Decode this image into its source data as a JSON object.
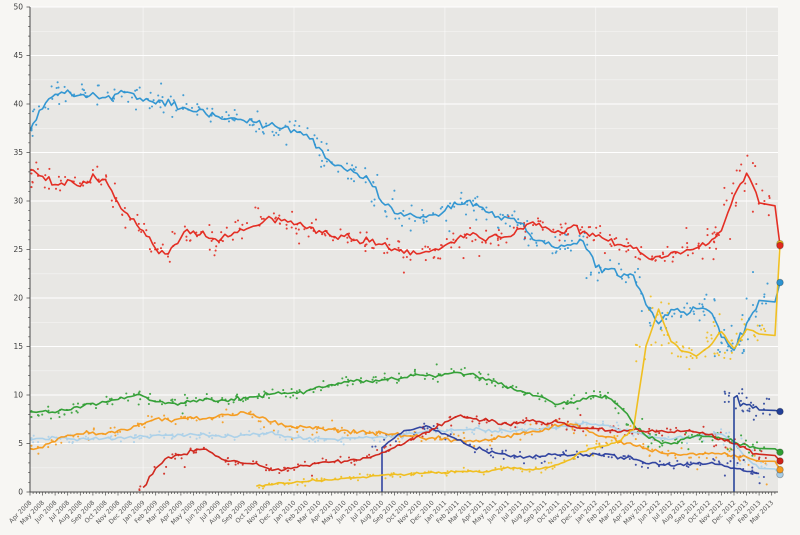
{
  "chart_data": {
    "type": "scatter",
    "title": "",
    "xlabel": "",
    "ylabel": "",
    "ylim": [
      0,
      50
    ],
    "ytick_labels": [
      0,
      5,
      10,
      15,
      20,
      25,
      30,
      35,
      40,
      45,
      50
    ],
    "grid": "on",
    "panel_color": "#e8e7e4",
    "grid_color": "#ffffff",
    "axis_color": "#4a4a4a",
    "tick_label_color": "#555555",
    "x_months": [
      "Apr 2008",
      "May 2008",
      "Jun 2008",
      "Jul 2008",
      "Aug 2008",
      "Sep 2008",
      "Oct 2008",
      "Nov 2008",
      "Dec 2008",
      "Jan 2009",
      "Feb 2009",
      "Mar 2009",
      "Apr 2009",
      "May 2009",
      "Jun 2009",
      "Jul 2009",
      "Aug 2009",
      "Sep 2009",
      "Oct 2009",
      "Nov 2009",
      "Dec 2009",
      "Jan 2010",
      "Feb 2010",
      "Mar 2010",
      "Apr 2010",
      "May 2010",
      "Jun 2010",
      "Jul 2010",
      "Aug 2010",
      "Sep 2010",
      "Oct 2010",
      "Nov 2010",
      "Dec 2010",
      "Jan 2011",
      "Feb 2011",
      "Mar 2011",
      "Apr 2011",
      "May 2011",
      "Jun 2011",
      "Jul 2011",
      "Aug 2011",
      "Sep 2011",
      "Oct 2011",
      "Nov 2011",
      "Dec 2011",
      "Jan 2012",
      "Feb 2012",
      "Mar 2012",
      "Apr 2012",
      "May 2012",
      "Jun 2012",
      "Jul 2012",
      "Aug 2012",
      "Sep 2012",
      "Oct 2012",
      "Nov 2012",
      "Dec 2012",
      "Jan 2013",
      "Feb 2013",
      "Mar 2013"
    ],
    "series": [
      {
        "name": "light-blue",
        "color": "#a9cfe8",
        "values": [
          5.5,
          5.5,
          5.6,
          5.5,
          5.4,
          5.5,
          5.6,
          5.6,
          5.7,
          5.7,
          5.8,
          5.8,
          5.9,
          6.0,
          5.9,
          5.8,
          5.7,
          5.8,
          5.9,
          6.1,
          5.9,
          5.6,
          5.5,
          5.5,
          5.4,
          5.5,
          5.5,
          5.6,
          5.7,
          5.8,
          6.0,
          6.2,
          6.3,
          6.3,
          6.4,
          6.5,
          6.4,
          6.3,
          6.3,
          6.4,
          6.5,
          6.6,
          6.6,
          6.8,
          7.2,
          7.0,
          6.8,
          6.4,
          6.2,
          5.8,
          5.6,
          5.5,
          5.6,
          5.8,
          5.9,
          6.0,
          5.2,
          3.6,
          2.4,
          null
        ],
        "end_marker": 1.8,
        "riser": false
      },
      {
        "name": "orange",
        "color": "#f59b1d",
        "values": [
          4.4,
          4.6,
          5.2,
          5.8,
          6.0,
          6.2,
          6.0,
          6.3,
          6.5,
          6.9,
          7.6,
          7.4,
          7.5,
          7.7,
          7.6,
          7.8,
          8.0,
          8.2,
          7.9,
          7.3,
          7.0,
          6.7,
          6.6,
          6.5,
          6.4,
          6.3,
          6.2,
          6.1,
          6.0,
          5.9,
          5.8,
          5.7,
          5.6,
          5.5,
          5.4,
          5.3,
          5.3,
          5.5,
          5.8,
          6.0,
          6.3,
          6.6,
          6.8,
          7.0,
          6.6,
          6.0,
          5.6,
          5.2,
          4.8,
          4.4,
          4.2,
          4.0,
          3.9,
          3.8,
          3.9,
          4.0,
          3.8,
          3.5,
          3.2,
          null
        ],
        "end_marker": 2.3,
        "riser": false
      },
      {
        "name": "green",
        "color": "#2f9e33",
        "values": [
          8.2,
          8.3,
          8.3,
          8.4,
          8.8,
          9.1,
          9.3,
          9.6,
          9.8,
          9.9,
          9.3,
          9.2,
          9.1,
          9.4,
          9.6,
          9.4,
          9.5,
          9.7,
          9.9,
          10.1,
          10.1,
          10.2,
          10.4,
          10.8,
          11.0,
          11.3,
          11.5,
          11.4,
          11.5,
          11.7,
          11.9,
          12.1,
          12.0,
          12.2,
          12.3,
          12.1,
          11.8,
          11.4,
          10.8,
          10.4,
          10.0,
          9.6,
          9.0,
          9.2,
          9.6,
          9.9,
          9.7,
          8.8,
          7.0,
          5.8,
          5.2,
          5.0,
          5.5,
          5.8,
          5.7,
          5.6,
          5.2,
          4.8,
          4.5,
          null
        ],
        "end_marker": 4.1,
        "riser": false
      },
      {
        "name": "navy-2010",
        "color": "#2b3f9e",
        "values": [
          null,
          null,
          null,
          null,
          null,
          null,
          null,
          null,
          null,
          null,
          null,
          null,
          null,
          null,
          null,
          null,
          null,
          null,
          null,
          null,
          null,
          null,
          null,
          null,
          null,
          null,
          null,
          null,
          4.6,
          5.6,
          6.3,
          6.7,
          6.6,
          6.0,
          5.4,
          4.8,
          4.4,
          4.0,
          3.8,
          3.7,
          3.6,
          3.7,
          3.8,
          3.9,
          3.8,
          3.9,
          3.8,
          3.6,
          3.4,
          3.0,
          2.9,
          2.8,
          2.8,
          2.9,
          2.9,
          2.8,
          2.5,
          2.2,
          1.9,
          null
        ],
        "end_marker": null,
        "riser": true
      },
      {
        "name": "dark-red",
        "color": "#cf2218",
        "values": [
          null,
          null,
          null,
          null,
          null,
          null,
          null,
          null,
          null,
          0.4,
          2.4,
          3.6,
          3.8,
          4.2,
          4.5,
          3.6,
          3.2,
          3.0,
          2.9,
          2.4,
          2.2,
          2.5,
          2.8,
          3.0,
          3.1,
          3.2,
          3.4,
          3.6,
          4.0,
          4.6,
          5.2,
          5.8,
          6.4,
          7.2,
          7.8,
          7.6,
          7.4,
          7.2,
          7.0,
          7.2,
          7.4,
          7.0,
          7.2,
          6.8,
          6.6,
          6.6,
          6.4,
          6.3,
          6.4,
          6.2,
          6.3,
          6.2,
          6.3,
          6.2,
          6.0,
          5.5,
          5.0,
          4.4,
          3.8,
          null
        ],
        "end_marker": 3.2,
        "riser": false
      },
      {
        "name": "blue",
        "color": "#2d94d1",
        "values": [
          37.4,
          39.6,
          41.0,
          41.3,
          40.8,
          41.1,
          40.6,
          41.0,
          41.3,
          40.3,
          40.0,
          40.3,
          39.6,
          39.3,
          39.0,
          38.8,
          38.5,
          38.3,
          38.0,
          37.8,
          37.6,
          37.2,
          36.8,
          35.6,
          33.9,
          33.3,
          32.8,
          32.2,
          29.9,
          28.8,
          28.5,
          28.3,
          28.6,
          29.0,
          29.8,
          30.1,
          29.3,
          28.4,
          28.1,
          27.7,
          26.1,
          25.7,
          25.2,
          25.5,
          26.0,
          23.2,
          22.8,
          22.3,
          22.5,
          19.5,
          17.3,
          18.8,
          18.5,
          18.8,
          18.7,
          16.0,
          14.8,
          17.3,
          19.8,
          null
        ],
        "end_marker": 21.6,
        "riser": false
      },
      {
        "name": "yellow",
        "color": "#f0bd1a",
        "values": [
          null,
          null,
          null,
          null,
          null,
          null,
          null,
          null,
          null,
          null,
          null,
          null,
          null,
          null,
          null,
          null,
          null,
          null,
          0.6,
          0.8,
          0.9,
          1.0,
          1.1,
          1.2,
          1.3,
          1.4,
          1.5,
          1.6,
          1.7,
          1.8,
          1.8,
          1.9,
          2.0,
          2.0,
          2.1,
          2.2,
          2.1,
          2.3,
          2.5,
          2.4,
          2.3,
          2.5,
          2.8,
          3.4,
          4.2,
          4.6,
          4.8,
          5.4,
          6.5,
          15.0,
          18.8,
          15.5,
          14.5,
          14.0,
          15.0,
          16.5,
          14.8,
          16.8,
          16.3,
          null
        ],
        "end_marker": 25.6,
        "riser": false
      },
      {
        "name": "navy-2012",
        "color": "#234099",
        "values": [
          null,
          null,
          null,
          null,
          null,
          null,
          null,
          null,
          null,
          null,
          null,
          null,
          null,
          null,
          null,
          null,
          null,
          null,
          null,
          null,
          null,
          null,
          null,
          null,
          null,
          null,
          null,
          null,
          null,
          null,
          null,
          null,
          null,
          null,
          null,
          null,
          null,
          null,
          null,
          null,
          null,
          null,
          null,
          null,
          null,
          null,
          null,
          null,
          null,
          null,
          null,
          null,
          null,
          null,
          null,
          null,
          9.7,
          8.9,
          8.5,
          null
        ],
        "end_marker": 8.3,
        "riser": true
      },
      {
        "name": "red",
        "color": "#e3281e",
        "values": [
          33.2,
          32.4,
          31.8,
          32.0,
          31.6,
          32.6,
          32.2,
          29.8,
          28.3,
          27.0,
          25.2,
          24.5,
          26.2,
          27.0,
          26.3,
          25.8,
          26.4,
          27.2,
          27.6,
          28.3,
          28.1,
          27.6,
          27.3,
          26.9,
          26.5,
          26.4,
          26.0,
          25.8,
          25.4,
          25.0,
          24.8,
          24.6,
          25.0,
          25.4,
          26.2,
          26.6,
          26.1,
          26.4,
          26.2,
          27.0,
          27.8,
          27.3,
          26.8,
          27.2,
          26.8,
          26.3,
          26.0,
          25.4,
          25.1,
          24.4,
          24.2,
          24.6,
          24.8,
          25.2,
          25.6,
          26.8,
          30.5,
          33.0,
          29.8,
          null
        ],
        "end_marker": 25.4,
        "riser": false
      }
    ]
  }
}
